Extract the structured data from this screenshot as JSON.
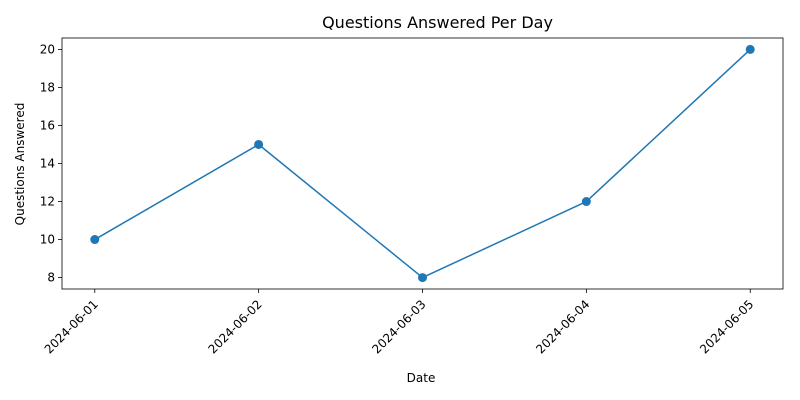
{
  "chart_data": {
    "type": "line",
    "title": "Questions Answered Per Day",
    "xlabel": "Date",
    "ylabel": "Questions Answered",
    "x": [
      "2024-06-01",
      "2024-06-02",
      "2024-06-03",
      "2024-06-04",
      "2024-06-05"
    ],
    "series": [
      {
        "values": [
          10,
          15,
          8,
          12,
          20
        ],
        "color": "#1f77b4",
        "marker": "circle"
      }
    ],
    "ylim": [
      7.4,
      20.6
    ],
    "yticks": [
      8,
      10,
      12,
      14,
      16,
      18,
      20
    ],
    "xtick_rotation": "45 degrees",
    "grid": false,
    "legend": "none"
  }
}
